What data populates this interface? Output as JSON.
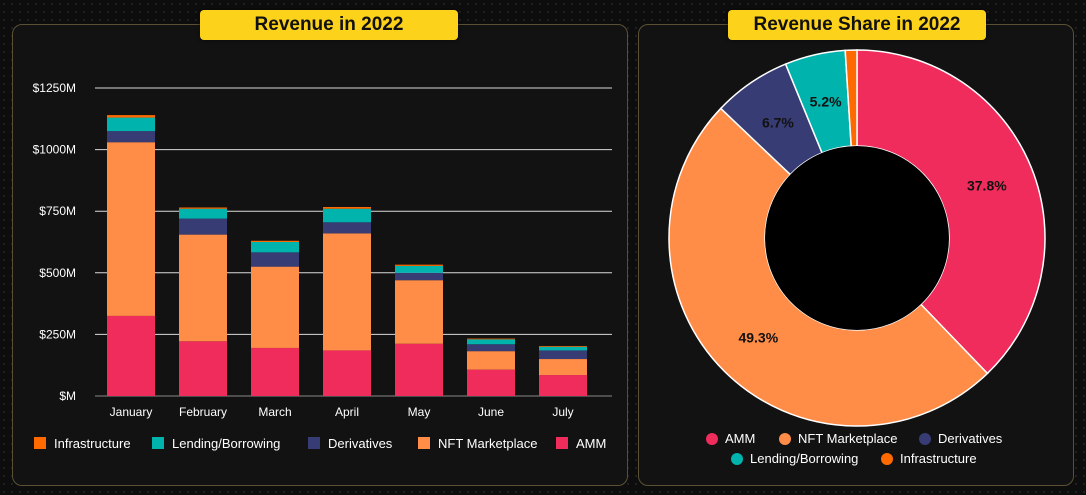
{
  "colors": {
    "AMM": "#f02c5c",
    "NFT Marketplace": "#ff8c47",
    "Derivatives": "#373c74",
    "Lending/Borrowing": "#00b3ad",
    "Infrastructure": "#ff6a00",
    "accent": "#fcd21a"
  },
  "chart_data": [
    {
      "type": "bar",
      "stacked": true,
      "title": "Revenue in 2022",
      "categories": [
        "January",
        "February",
        "March",
        "April",
        "May",
        "June",
        "July"
      ],
      "series": [
        {
          "name": "AMM",
          "values": [
            325,
            222,
            195,
            185,
            212,
            107,
            85
          ]
        },
        {
          "name": "NFT Marketplace",
          "values": [
            705,
            433,
            330,
            475,
            258,
            75,
            65
          ]
        },
        {
          "name": "Derivatives",
          "values": [
            45,
            65,
            58,
            45,
            30,
            28,
            35
          ]
        },
        {
          "name": "Lending/Borrowing",
          "values": [
            55,
            40,
            42,
            55,
            28,
            20,
            15
          ]
        },
        {
          "name": "Infrastructure",
          "values": [
            10,
            5,
            5,
            7,
            5,
            3,
            3
          ]
        }
      ],
      "yticks": [
        "$M",
        "$250M",
        "$500M",
        "$750M",
        "$1000M",
        "$1250M"
      ],
      "ytick_values": [
        0,
        250,
        500,
        750,
        1000,
        1250
      ],
      "ylim": [
        0,
        1250
      ],
      "grid": true,
      "legend": [
        "Infrastructure",
        "Lending/Borrowing",
        "Derivatives",
        "NFT Marketplace",
        "AMM"
      ],
      "legend_position": "bottom"
    },
    {
      "type": "pie",
      "donut": true,
      "title": "Revenue Share in 2022",
      "labels": [
        "AMM",
        "NFT Marketplace",
        "Derivatives",
        "Lending/Borrowing",
        "Infrastructure"
      ],
      "values": [
        37.8,
        49.3,
        6.7,
        5.2,
        1.0
      ],
      "data_labels": [
        "37.8%",
        "49.3%",
        "6.7%",
        "5.2%",
        ""
      ],
      "legend": [
        "AMM",
        "NFT Marketplace",
        "Derivatives",
        "Lending/Borrowing",
        "Infrastructure"
      ],
      "legend_position": "bottom"
    }
  ]
}
